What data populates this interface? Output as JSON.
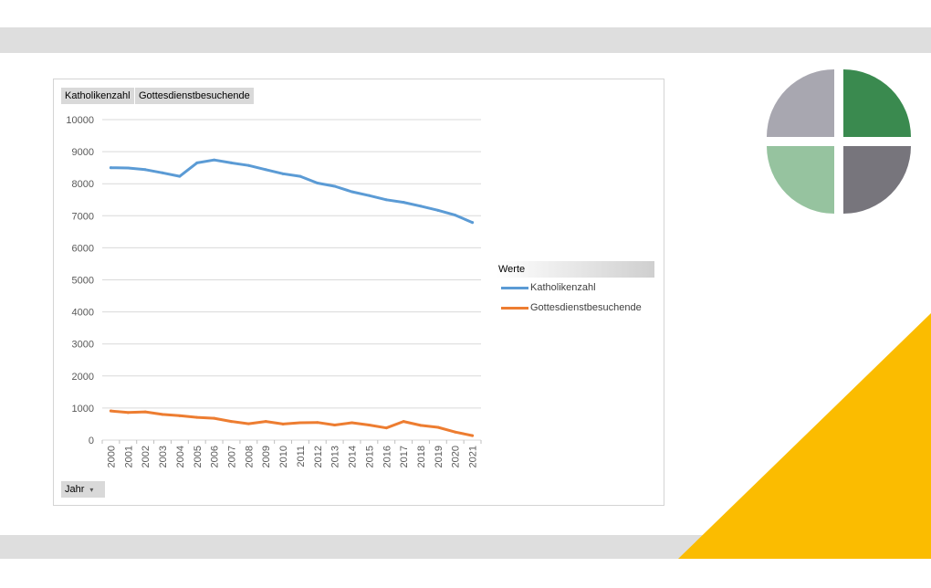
{
  "colors": {
    "band": "#dedede",
    "yellow": "#fbbc00",
    "series_blue": "#5b9bd5",
    "series_orange": "#ed7d31",
    "logo_grey": "#a8a7b0",
    "logo_green": "#3a8a4f",
    "logo_lightgreen": "#96c39f",
    "logo_darkgrey": "#77757c"
  },
  "pivot": {
    "value_fields": [
      "Katholikenzahl",
      "Gottesdienstbesuchende"
    ],
    "legend_header": "Werte",
    "axis_field": "Jahr",
    "axis_field_dropdown": "▾"
  },
  "chart_data": {
    "type": "line",
    "x": [
      "2000",
      "2001",
      "2002",
      "2003",
      "2004",
      "2005",
      "2006",
      "2007",
      "2008",
      "2009",
      "2010",
      "2011",
      "2012",
      "2013",
      "2014",
      "2015",
      "2016",
      "2017",
      "2018",
      "2019",
      "2020",
      "2021"
    ],
    "series": [
      {
        "name": "Katholikenzahl",
        "color": "#5b9bd5",
        "values": [
          8500,
          8490,
          8440,
          8340,
          8230,
          8650,
          8740,
          8650,
          8570,
          8440,
          8310,
          8230,
          8020,
          7920,
          7750,
          7630,
          7500,
          7420,
          7300,
          7170,
          7020,
          6790
        ]
      },
      {
        "name": "Gottesdienstbesuchende",
        "color": "#ed7d31",
        "values": [
          910,
          860,
          880,
          800,
          760,
          710,
          680,
          580,
          510,
          580,
          500,
          540,
          550,
          470,
          540,
          470,
          380,
          580,
          460,
          400,
          250,
          140
        ]
      }
    ],
    "ylim": [
      0,
      10000
    ],
    "yticks": [
      0,
      1000,
      2000,
      3000,
      4000,
      5000,
      6000,
      7000,
      8000,
      9000,
      10000
    ],
    "grid": true,
    "legend_position": "right"
  }
}
